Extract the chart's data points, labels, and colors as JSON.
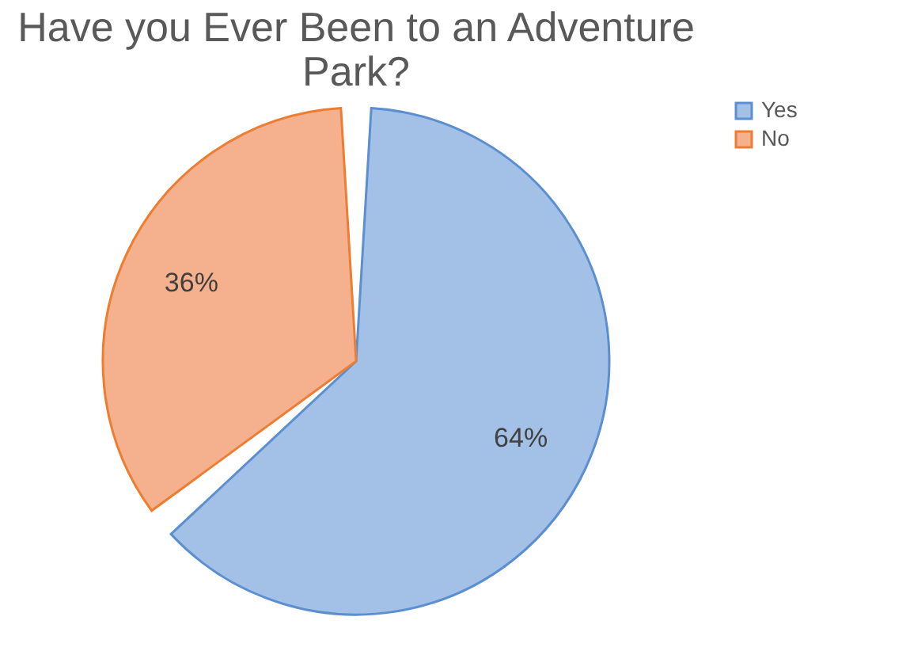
{
  "chart_data": {
    "type": "pie",
    "title": "Have you Ever Been to an Adventure Park?",
    "categories": [
      "Yes",
      "No"
    ],
    "values": [
      64,
      36
    ],
    "colors": [
      "#a3c0e6",
      "#f5b08e"
    ],
    "value_labels": [
      "64%",
      "36%"
    ],
    "legend": "right"
  }
}
